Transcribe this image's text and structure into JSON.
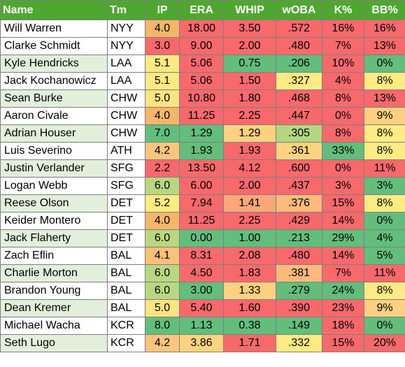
{
  "headers": [
    "Name",
    "Tm",
    "IP",
    "ERA",
    "WHIP",
    "wOBA",
    "K%",
    "BB%"
  ],
  "rows": [
    {
      "name": "Will Warren",
      "name_bg": "#ffffff",
      "tm": "NYY",
      "ip": "4.0",
      "ip_bg": "#f5b56b",
      "era": "18.00",
      "era_bg": "#f8696b",
      "whip": "3.50",
      "whip_bg": "#f8696b",
      "woba": ".572",
      "woba_bg": "#f8696b",
      "k": "16%",
      "k_bg": "#f8696b",
      "bb": "16%",
      "bb_bg": "#f8696b"
    },
    {
      "name": "Clarke Schmidt",
      "name_bg": "#ffffff",
      "tm": "NYY",
      "ip": "3.0",
      "ip_bg": "#f8696b",
      "era": "9.00",
      "era_bg": "#f8696b",
      "whip": "2.00",
      "whip_bg": "#f8696b",
      "woba": ".480",
      "woba_bg": "#f8696b",
      "k": "7%",
      "k_bg": "#f8696b",
      "bb": "13%",
      "bb_bg": "#f8696b"
    },
    {
      "name": "Kyle Hendricks",
      "name_bg": "#e2efda",
      "tm": "LAA",
      "ip": "5.1",
      "ip_bg": "#fbe983",
      "era": "5.06",
      "era_bg": "#f8696b",
      "whip": "0.75",
      "whip_bg": "#63be7b",
      "woba": ".206",
      "woba_bg": "#63be7b",
      "k": "10%",
      "k_bg": "#f8696b",
      "bb": "0%",
      "bb_bg": "#63be7b"
    },
    {
      "name": "Jack Kochanowicz",
      "name_bg": "#ffffff",
      "tm": "LAA",
      "ip": "5.1",
      "ip_bg": "#fbe983",
      "era": "5.06",
      "era_bg": "#f8696b",
      "whip": "1.50",
      "whip_bg": "#f8696b",
      "woba": ".327",
      "woba_bg": "#ffeb84",
      "k": "4%",
      "k_bg": "#f8696b",
      "bb": "8%",
      "bb_bg": "#ffeb84"
    },
    {
      "name": "Sean Burke",
      "name_bg": "#e2efda",
      "tm": "CHW",
      "ip": "5.0",
      "ip_bg": "#fee382",
      "era": "10.80",
      "era_bg": "#f8696b",
      "whip": "1.80",
      "whip_bg": "#f8696b",
      "woba": ".468",
      "woba_bg": "#f8696b",
      "k": "8%",
      "k_bg": "#f8696b",
      "bb": "13%",
      "bb_bg": "#f8696b"
    },
    {
      "name": "Aaron Civale",
      "name_bg": "#ffffff",
      "tm": "CHW",
      "ip": "4.0",
      "ip_bg": "#f5b56b",
      "era": "11.25",
      "era_bg": "#f8696b",
      "whip": "2.25",
      "whip_bg": "#f8696b",
      "woba": ".447",
      "woba_bg": "#f8696b",
      "k": "0%",
      "k_bg": "#f8696b",
      "bb": "9%",
      "bb_bg": "#fdd17f"
    },
    {
      "name": "Adrian Houser",
      "name_bg": "#e2efda",
      "tm": "CHW",
      "ip": "7.0",
      "ip_bg": "#63be7b",
      "era": "1.29",
      "era_bg": "#63be7b",
      "whip": "1.29",
      "whip_bg": "#fdd17f",
      "woba": ".305",
      "woba_bg": "#b5d680",
      "k": "8%",
      "k_bg": "#f8696b",
      "bb": "8%",
      "bb_bg": "#ffeb84"
    },
    {
      "name": "Luis Severino",
      "name_bg": "#ffffff",
      "tm": "ATH",
      "ip": "4.2",
      "ip_bg": "#fcc47c",
      "era": "1.93",
      "era_bg": "#63be7b",
      "whip": "1.93",
      "whip_bg": "#f8696b",
      "woba": ".361",
      "woba_bg": "#fed380",
      "k": "33%",
      "k_bg": "#63be7b",
      "bb": "8%",
      "bb_bg": "#ffeb84"
    },
    {
      "name": "Justin Verlander",
      "name_bg": "#e2efda",
      "tm": "SFG",
      "ip": "2.2",
      "ip_bg": "#f8696b",
      "era": "13.50",
      "era_bg": "#f8696b",
      "whip": "4.12",
      "whip_bg": "#f8696b",
      "woba": ".600",
      "woba_bg": "#f8696b",
      "k": "0%",
      "k_bg": "#f8696b",
      "bb": "11%",
      "bb_bg": "#f8696b"
    },
    {
      "name": "Logan Webb",
      "name_bg": "#ffffff",
      "tm": "SFG",
      "ip": "6.0",
      "ip_bg": "#b9d780",
      "era": "6.00",
      "era_bg": "#f8696b",
      "whip": "2.00",
      "whip_bg": "#f8696b",
      "woba": ".437",
      "woba_bg": "#f8696b",
      "k": "3%",
      "k_bg": "#f8696b",
      "bb": "3%",
      "bb_bg": "#63be7b"
    },
    {
      "name": "Reese Olson",
      "name_bg": "#e2efda",
      "tm": "DET",
      "ip": "5.2",
      "ip_bg": "#ffeb84",
      "era": "7.94",
      "era_bg": "#f8696b",
      "whip": "1.41",
      "whip_bg": "#fba77a",
      "woba": ".376",
      "woba_bg": "#fdba7c",
      "k": "15%",
      "k_bg": "#f8696b",
      "bb": "8%",
      "bb_bg": "#ffeb84"
    },
    {
      "name": "Keider Montero",
      "name_bg": "#ffffff",
      "tm": "DET",
      "ip": "4.0",
      "ip_bg": "#f5b56b",
      "era": "11.25",
      "era_bg": "#f8696b",
      "whip": "2.25",
      "whip_bg": "#f8696b",
      "woba": ".429",
      "woba_bg": "#f8696b",
      "k": "14%",
      "k_bg": "#f8696b",
      "bb": "0%",
      "bb_bg": "#63be7b"
    },
    {
      "name": "Jack Flaherty",
      "name_bg": "#e2efda",
      "tm": "DET",
      "ip": "6.0",
      "ip_bg": "#b9d780",
      "era": "0.00",
      "era_bg": "#63be7b",
      "whip": "1.00",
      "whip_bg": "#63be7b",
      "woba": ".213",
      "woba_bg": "#63be7b",
      "k": "29%",
      "k_bg": "#63be7b",
      "bb": "4%",
      "bb_bg": "#63be7b"
    },
    {
      "name": "Zach Eflin",
      "name_bg": "#ffffff",
      "tm": "BAL",
      "ip": "4.1",
      "ip_bg": "#fbbf7a",
      "era": "8.31",
      "era_bg": "#f8696b",
      "whip": "2.08",
      "whip_bg": "#f8696b",
      "woba": ".480",
      "woba_bg": "#f8696b",
      "k": "14%",
      "k_bg": "#f8696b",
      "bb": "5%",
      "bb_bg": "#63be7b"
    },
    {
      "name": "Charlie Morton",
      "name_bg": "#e2efda",
      "tm": "BAL",
      "ip": "6.0",
      "ip_bg": "#b9d780",
      "era": "4.50",
      "era_bg": "#f8696b",
      "whip": "1.83",
      "whip_bg": "#f8696b",
      "woba": ".381",
      "woba_bg": "#fdba7c",
      "k": "7%",
      "k_bg": "#f8696b",
      "bb": "11%",
      "bb_bg": "#f8696b"
    },
    {
      "name": "Brandon Young",
      "name_bg": "#ffffff",
      "tm": "BAL",
      "ip": "6.0",
      "ip_bg": "#b9d780",
      "era": "3.00",
      "era_bg": "#63be7b",
      "whip": "1.33",
      "whip_bg": "#fdd17f",
      "woba": ".279",
      "woba_bg": "#63be7b",
      "k": "24%",
      "k_bg": "#63be7b",
      "bb": "8%",
      "bb_bg": "#ffeb84"
    },
    {
      "name": "Dean Kremer",
      "name_bg": "#e2efda",
      "tm": "BAL",
      "ip": "5.0",
      "ip_bg": "#fee382",
      "era": "5.40",
      "era_bg": "#f8696b",
      "whip": "1.60",
      "whip_bg": "#f8696b",
      "woba": ".390",
      "woba_bg": "#f8696b",
      "k": "23%",
      "k_bg": "#f8696b",
      "bb": "9%",
      "bb_bg": "#fdd17f"
    },
    {
      "name": "Michael Wacha",
      "name_bg": "#ffffff",
      "tm": "KCR",
      "ip": "8.0",
      "ip_bg": "#63be7b",
      "era": "1.13",
      "era_bg": "#63be7b",
      "whip": "0.38",
      "whip_bg": "#63be7b",
      "woba": ".149",
      "woba_bg": "#63be7b",
      "k": "18%",
      "k_bg": "#f8696b",
      "bb": "0%",
      "bb_bg": "#63be7b"
    },
    {
      "name": "Seth Lugo",
      "name_bg": "#e2efda",
      "tm": "KCR",
      "ip": "4.2",
      "ip_bg": "#fcc47c",
      "era": "3.86",
      "era_bg": "#fed380",
      "whip": "1.71",
      "whip_bg": "#f8696b",
      "woba": ".332",
      "woba_bg": "#ffeb84",
      "k": "15%",
      "k_bg": "#f8696b",
      "bb": "20%",
      "bb_bg": "#f8696b"
    }
  ]
}
